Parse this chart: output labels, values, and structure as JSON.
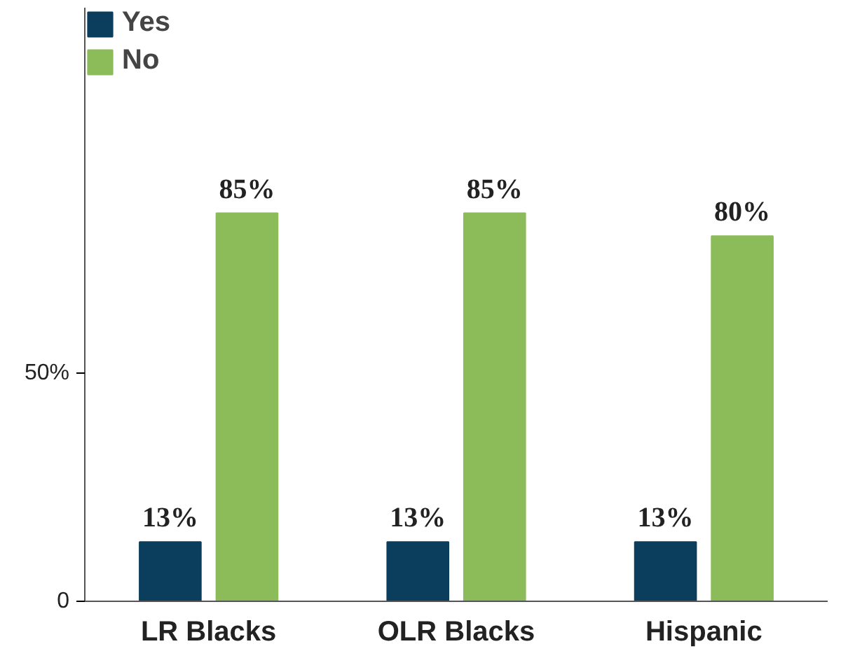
{
  "chart_data": {
    "type": "bar",
    "categories": [
      "LR Blacks",
      "OLR Blacks",
      "Hispanic"
    ],
    "series": [
      {
        "name": "Yes",
        "color": "#0b3d5c",
        "values": [
          13,
          13,
          13
        ],
        "value_labels": [
          "13%",
          "13%",
          "13%"
        ]
      },
      {
        "name": "No",
        "color": "#8cbb5a",
        "values": [
          85,
          85,
          80
        ],
        "value_labels": [
          "85%",
          "85%",
          "80%"
        ]
      }
    ],
    "ylim": [
      0,
      130
    ],
    "yticks": [
      0,
      {
        "value": 50,
        "label": "50%"
      }
    ],
    "grid": false,
    "legend": "top left"
  }
}
